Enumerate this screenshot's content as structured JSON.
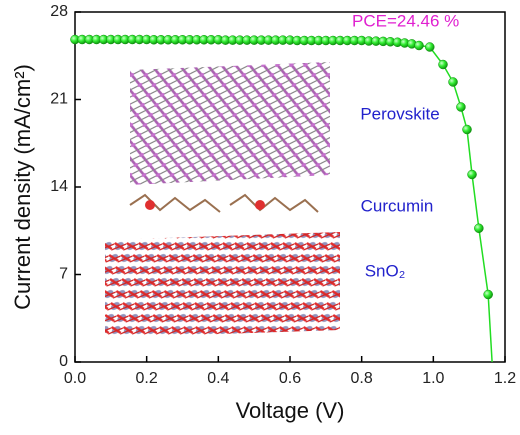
{
  "chart_data": {
    "type": "scatter",
    "xlabel": "Voltage (V)",
    "ylabel": "Current density (mA/cm²)",
    "xlim": [
      0,
      1.2
    ],
    "ylim": [
      0,
      28
    ],
    "xticks": [
      {
        "value": 0,
        "label": "0.0"
      },
      0.2,
      0.4,
      0.6,
      0.8,
      {
        "value": 1,
        "label": "1.0"
      },
      1.2
    ],
    "yticks": [
      0,
      7,
      14,
      21,
      28
    ],
    "annotations": [
      {
        "text": "PCE=24.46 %",
        "color": "#e020d0"
      },
      {
        "text": "Perovskite",
        "color": "#2222cc"
      },
      {
        "text": "Curcumin",
        "color": "#2222cc"
      },
      {
        "text": "SnO₂",
        "color": "#2222cc"
      }
    ],
    "series": [
      {
        "color": "#22dd22",
        "marker": false,
        "x": [
          0,
          0.8,
          0.9,
          0.96,
          0.99,
          1.027,
          1.055,
          1.077,
          1.094,
          1.108,
          1.127,
          1.153,
          1.164
        ],
        "values": [
          25.8,
          25.72,
          25.58,
          25.32,
          25.2,
          23.8,
          22.4,
          20.4,
          18.6,
          15.0,
          10.7,
          5.4,
          0
        ]
      },
      {
        "color": "#22dd22",
        "marker": true,
        "x": [
          0,
          0.02,
          0.04,
          0.06,
          0.08,
          0.1,
          0.12,
          0.14,
          0.16,
          0.18,
          0.2,
          0.22,
          0.24,
          0.26,
          0.28,
          0.3,
          0.32,
          0.34,
          0.36,
          0.38,
          0.4,
          0.42,
          0.44,
          0.46,
          0.48,
          0.5,
          0.52,
          0.54,
          0.56,
          0.58,
          0.6,
          0.62,
          0.64,
          0.66,
          0.68,
          0.7,
          0.72,
          0.74,
          0.76,
          0.78,
          0.8,
          0.82,
          0.84,
          0.86,
          0.88,
          0.9,
          0.92,
          0.94,
          0.96,
          0.99,
          1.027,
          1.055,
          1.077,
          1.094,
          1.108,
          1.127,
          1.153
        ],
        "values": [
          25.8,
          25.8,
          25.8,
          25.8,
          25.8,
          25.8,
          25.8,
          25.8,
          25.8,
          25.8,
          25.8,
          25.78,
          25.78,
          25.78,
          25.78,
          25.78,
          25.78,
          25.78,
          25.78,
          25.78,
          25.78,
          25.75,
          25.75,
          25.75,
          25.75,
          25.75,
          25.75,
          25.75,
          25.75,
          25.75,
          25.75,
          25.72,
          25.72,
          25.72,
          25.72,
          25.72,
          25.72,
          25.72,
          25.72,
          25.72,
          25.72,
          25.68,
          25.67,
          25.65,
          25.62,
          25.58,
          25.52,
          25.45,
          25.32,
          25.2,
          23.8,
          22.4,
          20.4,
          18.6,
          15.0,
          10.7,
          5.4
        ]
      }
    ]
  }
}
